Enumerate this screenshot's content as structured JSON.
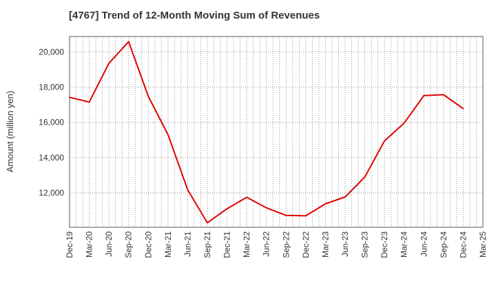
{
  "chart_data": {
    "type": "line",
    "title": "[4767]  Trend of 12-Month Moving Sum of Revenues",
    "xlabel": "",
    "ylabel": "Amount (million yen)",
    "x_tick_labels": [
      "Dec-19",
      "Mar-20",
      "Jun-20",
      "Sep-20",
      "Dec-20",
      "Mar-21",
      "Jun-21",
      "Sep-21",
      "Dec-21",
      "Mar-22",
      "Jun-22",
      "Sep-22",
      "Dec-22",
      "Mar-23",
      "Jun-23",
      "Sep-23",
      "Dec-23",
      "Mar-24",
      "Jun-24",
      "Sep-24",
      "Dec-24",
      "Mar-25"
    ],
    "y_ticks": [
      12000,
      14000,
      16000,
      18000,
      20000
    ],
    "y_tick_labels": [
      "12,000",
      "14,000",
      "16,000",
      "18,000",
      "20,000"
    ],
    "ylim": [
      10050,
      20870
    ],
    "grid": true,
    "line_color": "#e00000",
    "series": [
      {
        "x": [
          "Dec-19",
          "Mar-20",
          "Jun-20",
          "Sep-20",
          "Dec-20",
          "Mar-21",
          "Jun-21",
          "Sep-21",
          "Dec-21",
          "Mar-22",
          "Jun-22",
          "Sep-22",
          "Dec-22",
          "Mar-23",
          "Jun-23",
          "Sep-23",
          "Dec-23",
          "Mar-24",
          "Jun-24",
          "Sep-24",
          "Dec-24"
        ],
        "values": [
          17420,
          17150,
          19350,
          20580,
          17470,
          15300,
          12180,
          10300,
          11100,
          11750,
          11150,
          10720,
          10700,
          11380,
          11770,
          12900,
          14950,
          15960,
          17520,
          17570,
          16780
        ]
      }
    ]
  }
}
